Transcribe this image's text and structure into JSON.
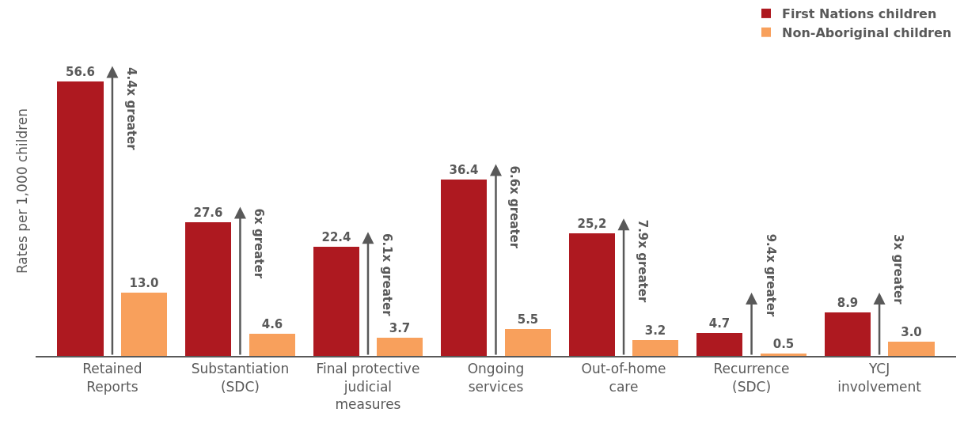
{
  "chart_data": {
    "type": "bar",
    "ylabel": "Rates per 1,000 children",
    "categories": [
      "Retained\nReports",
      "Substantiation\n(SDC)",
      "Final protective\njudicial\nmeasures",
      "Ongoing\nservices",
      "Out-of-home\ncare",
      "Recurrence\n(SDC)",
      "YCJ\ninvolvement"
    ],
    "series": [
      {
        "name": "First Nations children",
        "color": "#ae1920",
        "values": [
          56.6,
          27.6,
          22.4,
          36.4,
          25.2,
          4.7,
          8.9
        ],
        "value_labels": [
          "56.6",
          "27.6",
          "22.4",
          "36.4",
          "25,2",
          "4.7",
          "8.9"
        ]
      },
      {
        "name": "Non-Aboriginal children",
        "color": "#f8a05c",
        "values": [
          13.0,
          4.6,
          3.7,
          5.5,
          3.2,
          0.5,
          3.0
        ],
        "value_labels": [
          "13.0",
          "4.6",
          "3.7",
          "5.5",
          "3.2",
          "0.5",
          "3.0"
        ]
      }
    ],
    "annotations": [
      "4.4x greater",
      "6x greater",
      "6.1x greater",
      "6.6x greater",
      "7.9x greater",
      "9.4x greater",
      "3x greater"
    ],
    "legend": "top right"
  }
}
